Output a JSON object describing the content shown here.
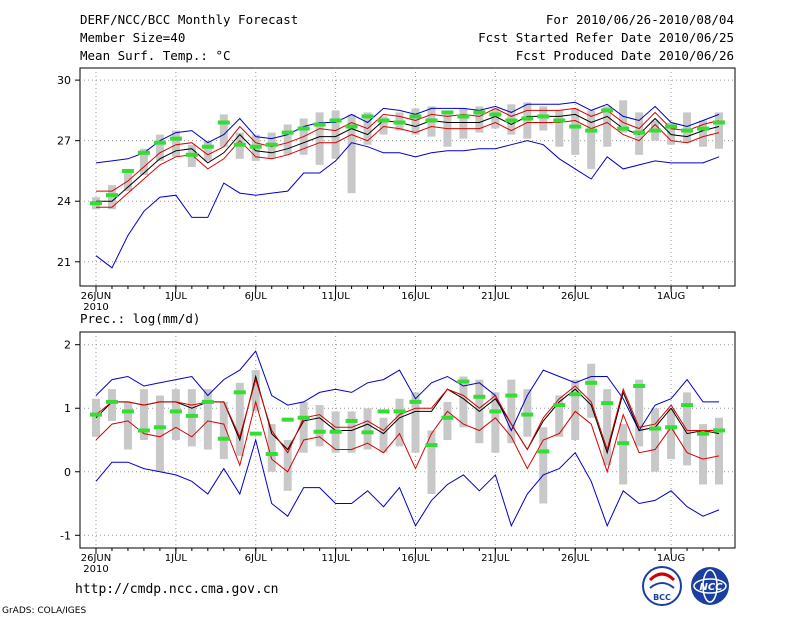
{
  "header": {
    "title": "DERF/NCC/BCC Monthly Forecast",
    "member_size": "Member Size=40",
    "forecast_period": "For 2010/06/26-2010/08/04",
    "fcst_started": "Fcst Started Refer Date 2010/06/25",
    "fcst_produced": "Fcst Produced Date 2010/06/26"
  },
  "footer": {
    "url": "http://cmdp.ncc.cma.gov.cn",
    "grads": "GrADS: COLA/IGES",
    "logo_bcc": "BCC",
    "logo_ncc": "NCC"
  },
  "colors": {
    "mean": "#000000",
    "red": "#dd0000",
    "blue": "#0000cc",
    "obs": "#33dd33",
    "box": "#c8c8c8",
    "grid": "#999999"
  },
  "chart_data": [
    {
      "type": "line",
      "title": "Mean Surf. Temp.: °C",
      "ylabel": "°C",
      "ylim": [
        19.8,
        30.6
      ],
      "yticks": [
        21,
        24,
        27,
        30
      ],
      "xtick_labels": [
        "26JUN",
        "1JUL",
        "6JUL",
        "11JUL",
        "16JUL",
        "21JUL",
        "26JUL",
        "1AUG"
      ],
      "xtick_days": [
        0,
        5,
        10,
        15,
        20,
        25,
        30,
        36
      ],
      "year_label": "2010",
      "days": 40,
      "series": [
        {
          "name": "upper",
          "color": "blue",
          "values": [
            25.9,
            26.0,
            26.1,
            26.4,
            27.0,
            27.4,
            27.5,
            26.9,
            27.3,
            28.1,
            27.2,
            27.1,
            27.3,
            27.7,
            27.9,
            27.9,
            28.3,
            27.9,
            28.6,
            28.5,
            28.3,
            28.6,
            28.6,
            28.6,
            28.5,
            28.7,
            28.4,
            28.8,
            28.8,
            28.8,
            28.9,
            28.5,
            28.8,
            28.2,
            28.0,
            28.7,
            27.9,
            27.7,
            28.0,
            28.3
          ]
        },
        {
          "name": "red_upper",
          "color": "red",
          "values": [
            24.5,
            24.5,
            25.0,
            25.7,
            26.4,
            26.8,
            26.9,
            26.3,
            26.7,
            27.7,
            26.9,
            26.7,
            26.9,
            27.2,
            27.6,
            27.5,
            27.9,
            27.6,
            28.3,
            28.2,
            28.0,
            28.3,
            28.2,
            28.3,
            28.2,
            28.6,
            28.2,
            28.5,
            28.5,
            28.5,
            28.6,
            28.2,
            28.5,
            27.9,
            27.6,
            28.4,
            27.6,
            27.5,
            27.8,
            28.0
          ]
        },
        {
          "name": "mean",
          "color": "mean",
          "values": [
            24.0,
            24.0,
            24.7,
            25.4,
            26.1,
            26.5,
            26.6,
            25.9,
            26.4,
            27.3,
            26.5,
            26.4,
            26.6,
            26.9,
            27.2,
            27.2,
            27.6,
            27.3,
            28.0,
            27.9,
            27.7,
            28.0,
            27.9,
            27.9,
            27.9,
            28.2,
            27.8,
            28.2,
            28.2,
            28.2,
            28.3,
            27.9,
            28.2,
            27.6,
            27.3,
            28.1,
            27.3,
            27.2,
            27.5,
            27.7
          ]
        },
        {
          "name": "red_lower",
          "color": "red",
          "values": [
            23.7,
            23.7,
            24.4,
            25.1,
            25.8,
            26.2,
            26.3,
            25.6,
            26.1,
            27.0,
            26.2,
            26.1,
            26.3,
            26.6,
            26.9,
            26.9,
            27.3,
            27.0,
            27.7,
            27.6,
            27.4,
            27.7,
            27.6,
            27.6,
            27.6,
            27.9,
            27.5,
            27.9,
            27.9,
            27.9,
            28.0,
            27.6,
            27.9,
            27.3,
            27.0,
            27.8,
            27.0,
            26.9,
            27.2,
            27.4
          ]
        },
        {
          "name": "lower",
          "color": "blue",
          "values": [
            21.3,
            20.7,
            22.3,
            23.5,
            24.2,
            24.3,
            23.2,
            23.2,
            24.9,
            24.4,
            24.3,
            24.4,
            24.5,
            25.4,
            25.4,
            26.0,
            26.9,
            26.7,
            26.4,
            26.4,
            26.2,
            26.4,
            26.5,
            26.5,
            26.6,
            26.6,
            26.8,
            27.0,
            26.8,
            26.1,
            25.6,
            25.1,
            26.2,
            25.6,
            25.8,
            26.0,
            25.9,
            25.9,
            25.9,
            26.2
          ]
        }
      ],
      "obs": [
        23.9,
        24.3,
        25.5,
        26.4,
        26.9,
        27.1,
        26.3,
        26.7,
        27.9,
        26.8,
        26.7,
        26.8,
        27.4,
        27.6,
        27.8,
        28.0,
        27.7,
        28.2,
        28.0,
        27.9,
        28.2,
        28.0,
        28.4,
        28.2,
        28.4,
        28.3,
        28.0,
        28.1,
        28.2,
        28.0,
        27.7,
        27.5,
        28.5,
        27.6,
        27.4,
        27.5,
        27.7,
        27.5,
        27.6,
        27.9
      ],
      "boxes": [
        [
          23.6,
          24.2
        ],
        [
          23.6,
          24.8
        ],
        [
          24.5,
          25.6
        ],
        [
          25.3,
          26.6
        ],
        [
          26.0,
          27.3
        ],
        [
          26.2,
          27.5
        ],
        [
          25.7,
          26.8
        ],
        [
          26.0,
          27.0
        ],
        [
          26.7,
          28.3
        ],
        [
          26.1,
          27.4
        ],
        [
          26.0,
          27.3
        ],
        [
          26.1,
          27.4
        ],
        [
          26.3,
          27.8
        ],
        [
          26.3,
          28.1
        ],
        [
          25.8,
          28.4
        ],
        [
          26.1,
          28.5
        ],
        [
          24.4,
          28.3
        ],
        [
          26.8,
          28.4
        ],
        [
          27.3,
          28.2
        ],
        [
          27.5,
          28.4
        ],
        [
          27.3,
          28.6
        ],
        [
          27.2,
          28.7
        ],
        [
          26.7,
          28.3
        ],
        [
          27.1,
          28.6
        ],
        [
          27.4,
          28.7
        ],
        [
          27.6,
          28.6
        ],
        [
          27.3,
          28.8
        ],
        [
          27.1,
          28.9
        ],
        [
          27.5,
          28.7
        ],
        [
          26.7,
          28.5
        ],
        [
          26.3,
          28.6
        ],
        [
          25.6,
          28.5
        ],
        [
          26.7,
          28.7
        ],
        [
          27.4,
          29.0
        ],
        [
          26.3,
          28.4
        ],
        [
          27.0,
          28.0
        ],
        [
          26.8,
          27.9
        ],
        [
          26.9,
          28.4
        ],
        [
          26.7,
          28.0
        ],
        [
          26.6,
          28.4
        ]
      ]
    },
    {
      "type": "line",
      "title": "Prec.: log(mm/d)",
      "ylabel": "log(mm/d)",
      "ylim": [
        -1.2,
        2.2
      ],
      "yticks": [
        -1,
        0,
        1,
        2
      ],
      "xtick_labels": [
        "26JUN",
        "1JUL",
        "6JUL",
        "11JUL",
        "16JUL",
        "21JUL",
        "26JUL",
        "1AUG"
      ],
      "xtick_days": [
        0,
        5,
        10,
        15,
        20,
        25,
        30,
        36
      ],
      "year_label": "2010",
      "days": 40,
      "series": [
        {
          "name": "upper",
          "color": "blue",
          "values": [
            1.2,
            1.45,
            1.5,
            1.35,
            1.4,
            1.45,
            1.5,
            1.2,
            1.45,
            1.6,
            1.9,
            1.2,
            1.05,
            1.1,
            1.25,
            1.3,
            1.25,
            1.4,
            1.45,
            1.6,
            1.15,
            1.4,
            1.5,
            1.35,
            1.4,
            1.2,
            0.65,
            1.2,
            1.6,
            1.5,
            1.4,
            1.5,
            1.5,
            1.15,
            0.65,
            1.05,
            1.15,
            1.45,
            1.1,
            1.1
          ]
        },
        {
          "name": "mean",
          "color": "mean",
          "values": [
            0.85,
            1.1,
            1.1,
            1.05,
            1.1,
            1.1,
            1.0,
            1.1,
            1.1,
            0.5,
            1.5,
            0.6,
            0.35,
            0.8,
            0.85,
            0.65,
            0.65,
            0.75,
            0.6,
            0.85,
            0.95,
            0.95,
            1.3,
            1.15,
            0.95,
            1.15,
            0.75,
            0.35,
            0.8,
            1.1,
            1.3,
            1.05,
            0.3,
            1.25,
            0.65,
            0.7,
            1.0,
            0.6,
            0.65,
            0.6
          ]
        },
        {
          "name": "red_mean",
          "color": "red",
          "values": [
            0.9,
            1.1,
            1.1,
            1.05,
            1.1,
            1.1,
            1.05,
            1.1,
            1.1,
            0.55,
            1.45,
            0.65,
            0.3,
            0.85,
            0.9,
            0.7,
            0.7,
            0.8,
            0.65,
            0.9,
            1.0,
            1.0,
            1.3,
            1.2,
            1.0,
            1.2,
            0.75,
            0.35,
            0.85,
            1.15,
            1.35,
            1.1,
            0.35,
            1.3,
            0.7,
            0.75,
            1.05,
            0.65,
            0.65,
            0.65
          ]
        },
        {
          "name": "red_lower",
          "color": "red",
          "values": [
            0.5,
            0.75,
            0.8,
            0.6,
            0.55,
            0.7,
            0.55,
            0.8,
            0.75,
            0.1,
            1.1,
            0.2,
            0.0,
            0.5,
            0.55,
            0.35,
            0.35,
            0.45,
            0.3,
            0.6,
            0.05,
            0.6,
            0.95,
            0.75,
            0.65,
            0.85,
            0.55,
            0.05,
            0.5,
            0.6,
            0.95,
            0.75,
            0.0,
            0.9,
            0.3,
            0.35,
            0.7,
            0.3,
            0.2,
            0.25
          ]
        },
        {
          "name": "lower",
          "color": "blue",
          "values": [
            -0.15,
            0.15,
            0.15,
            0.05,
            0.0,
            -0.05,
            -0.15,
            -0.35,
            0.05,
            -0.35,
            0.5,
            -0.5,
            -0.7,
            -0.25,
            -0.25,
            -0.5,
            -0.5,
            -0.3,
            -0.55,
            -0.25,
            -0.85,
            -0.45,
            -0.2,
            -0.05,
            -0.3,
            -0.05,
            -0.85,
            -0.35,
            -0.05,
            0.05,
            0.3,
            -0.15,
            -0.85,
            -0.3,
            -0.5,
            -0.45,
            -0.3,
            -0.55,
            -0.7,
            -0.6
          ]
        }
      ],
      "obs": [
        0.9,
        1.1,
        0.95,
        0.65,
        0.7,
        0.95,
        0.88,
        1.1,
        0.52,
        1.25,
        0.6,
        0.28,
        0.82,
        0.85,
        0.63,
        0.63,
        0.8,
        0.62,
        0.95,
        0.95,
        1.1,
        0.42,
        0.85,
        1.42,
        1.18,
        0.95,
        1.2,
        0.9,
        0.32,
        1.05,
        1.22,
        1.4,
        1.08,
        0.45,
        1.35,
        0.68,
        0.7,
        1.05,
        0.6,
        0.65
      ],
      "boxes": [
        [
          0.55,
          1.15
        ],
        [
          0.8,
          1.3
        ],
        [
          0.35,
          1.1
        ],
        [
          0.5,
          1.3
        ],
        [
          0.0,
          1.2
        ],
        [
          0.5,
          1.3
        ],
        [
          0.4,
          1.3
        ],
        [
          0.35,
          1.3
        ],
        [
          0.2,
          1.1
        ],
        [
          0.25,
          1.4
        ],
        [
          0.95,
          1.6
        ],
        [
          0.0,
          0.75
        ],
        [
          -0.3,
          0.5
        ],
        [
          0.3,
          1.1
        ],
        [
          0.4,
          1.05
        ],
        [
          0.3,
          0.95
        ],
        [
          0.3,
          0.95
        ],
        [
          0.35,
          1.0
        ],
        [
          0.3,
          0.85
        ],
        [
          0.4,
          1.15
        ],
        [
          0.3,
          1.25
        ],
        [
          -0.35,
          0.65
        ],
        [
          0.5,
          1.1
        ],
        [
          0.7,
          1.5
        ],
        [
          0.45,
          1.45
        ],
        [
          0.3,
          1.25
        ],
        [
          0.45,
          1.45
        ],
        [
          0.55,
          1.3
        ],
        [
          -0.5,
          0.7
        ],
        [
          0.55,
          1.2
        ],
        [
          0.5,
          1.45
        ],
        [
          0.85,
          1.7
        ],
        [
          0.1,
          1.3
        ],
        [
          -0.2,
          0.75
        ],
        [
          0.4,
          1.45
        ],
        [
          0.0,
          1.0
        ],
        [
          0.2,
          1.0
        ],
        [
          0.1,
          1.25
        ],
        [
          -0.2,
          0.75
        ],
        [
          -0.2,
          0.85
        ]
      ]
    }
  ]
}
